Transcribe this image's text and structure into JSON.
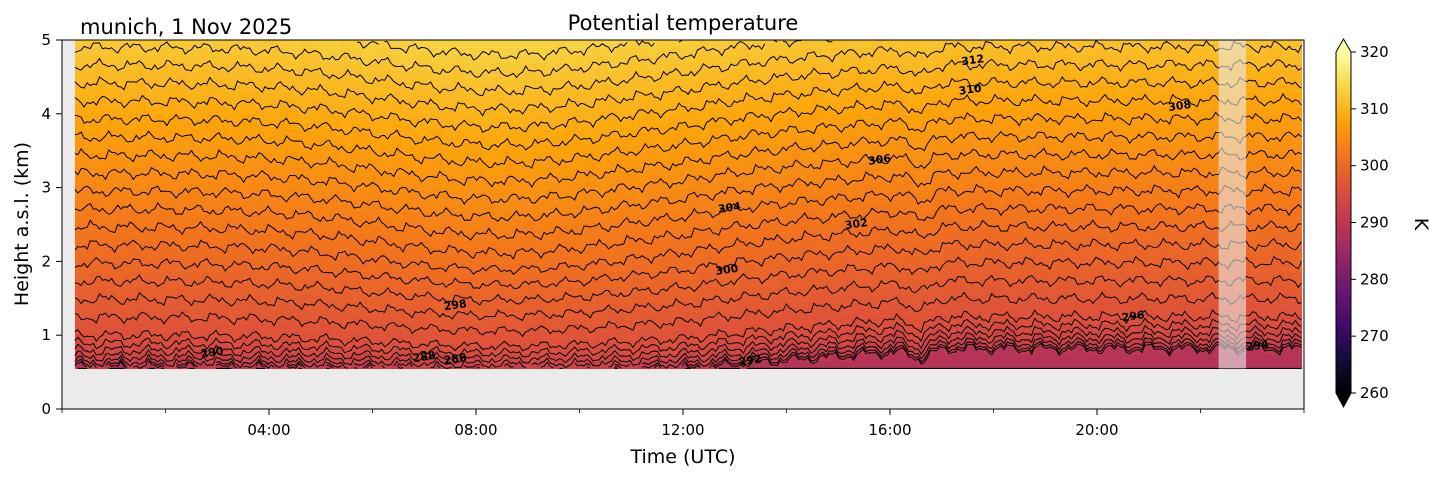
{
  "chart_data": {
    "type": "heatmap",
    "title": "Potential temperature",
    "location_label": "munich, 1 Nov 2025",
    "xlabel": "Time (UTC)",
    "ylabel": "Height a.s.l. (km)",
    "colorbar_label": "K",
    "colormap": "inferno",
    "x_range_hours": [
      0,
      24
    ],
    "ylim": [
      0,
      5
    ],
    "x_ticks": [
      "04:00",
      "08:00",
      "12:00",
      "16:00",
      "20:00"
    ],
    "x_tick_hours": [
      4,
      8,
      12,
      16,
      20
    ],
    "y_ticks": [
      "0",
      "1",
      "2",
      "3",
      "4",
      "5"
    ],
    "y_tick_values": [
      0,
      1,
      2,
      3,
      4,
      5
    ],
    "colorbar_range": [
      260,
      320
    ],
    "colorbar_ticks": [
      "260",
      "270",
      "280",
      "290",
      "300",
      "310",
      "320"
    ],
    "colorbar_tick_values": [
      260,
      270,
      280,
      290,
      300,
      310,
      320
    ],
    "data_coverage": {
      "start_hour": 0.25,
      "end_hour": 23.95,
      "min_height_km": 0.55,
      "max_height_km": 5.0
    },
    "missing_data_band_hours": [
      22.35,
      22.88
    ],
    "contour_levels": [
      284,
      285,
      286,
      287,
      288,
      289,
      290,
      291,
      292,
      293,
      294,
      295,
      296,
      297,
      298,
      299,
      300,
      301,
      302,
      303,
      304,
      305,
      306,
      307,
      308,
      309,
      310,
      311,
      312,
      313
    ],
    "contour_labels": [
      {
        "text": "312",
        "hour": 17.6,
        "height_km": 4.72
      },
      {
        "text": "310",
        "hour": 17.55,
        "height_km": 4.32
      },
      {
        "text": "308",
        "hour": 21.6,
        "height_km": 4.1
      },
      {
        "text": "306",
        "hour": 15.8,
        "height_km": 3.37
      },
      {
        "text": "304",
        "hour": 12.9,
        "height_km": 2.72
      },
      {
        "text": "302",
        "hour": 15.35,
        "height_km": 2.5
      },
      {
        "text": "300",
        "hour": 12.85,
        "height_km": 1.88
      },
      {
        "text": "298",
        "hour": 7.6,
        "height_km": 1.4
      },
      {
        "text": "296",
        "hour": 20.7,
        "height_km": 1.25
      },
      {
        "text": "294",
        "hour": 23.1,
        "height_km": 0.85
      },
      {
        "text": "292",
        "hour": 13.3,
        "height_km": 0.65
      },
      {
        "text": "290",
        "hour": 2.9,
        "height_km": 0.76
      },
      {
        "text": "288",
        "hour": 7.0,
        "height_km": 0.7
      },
      {
        "text": "286",
        "hour": 7.6,
        "height_km": 0.67
      }
    ]
  }
}
